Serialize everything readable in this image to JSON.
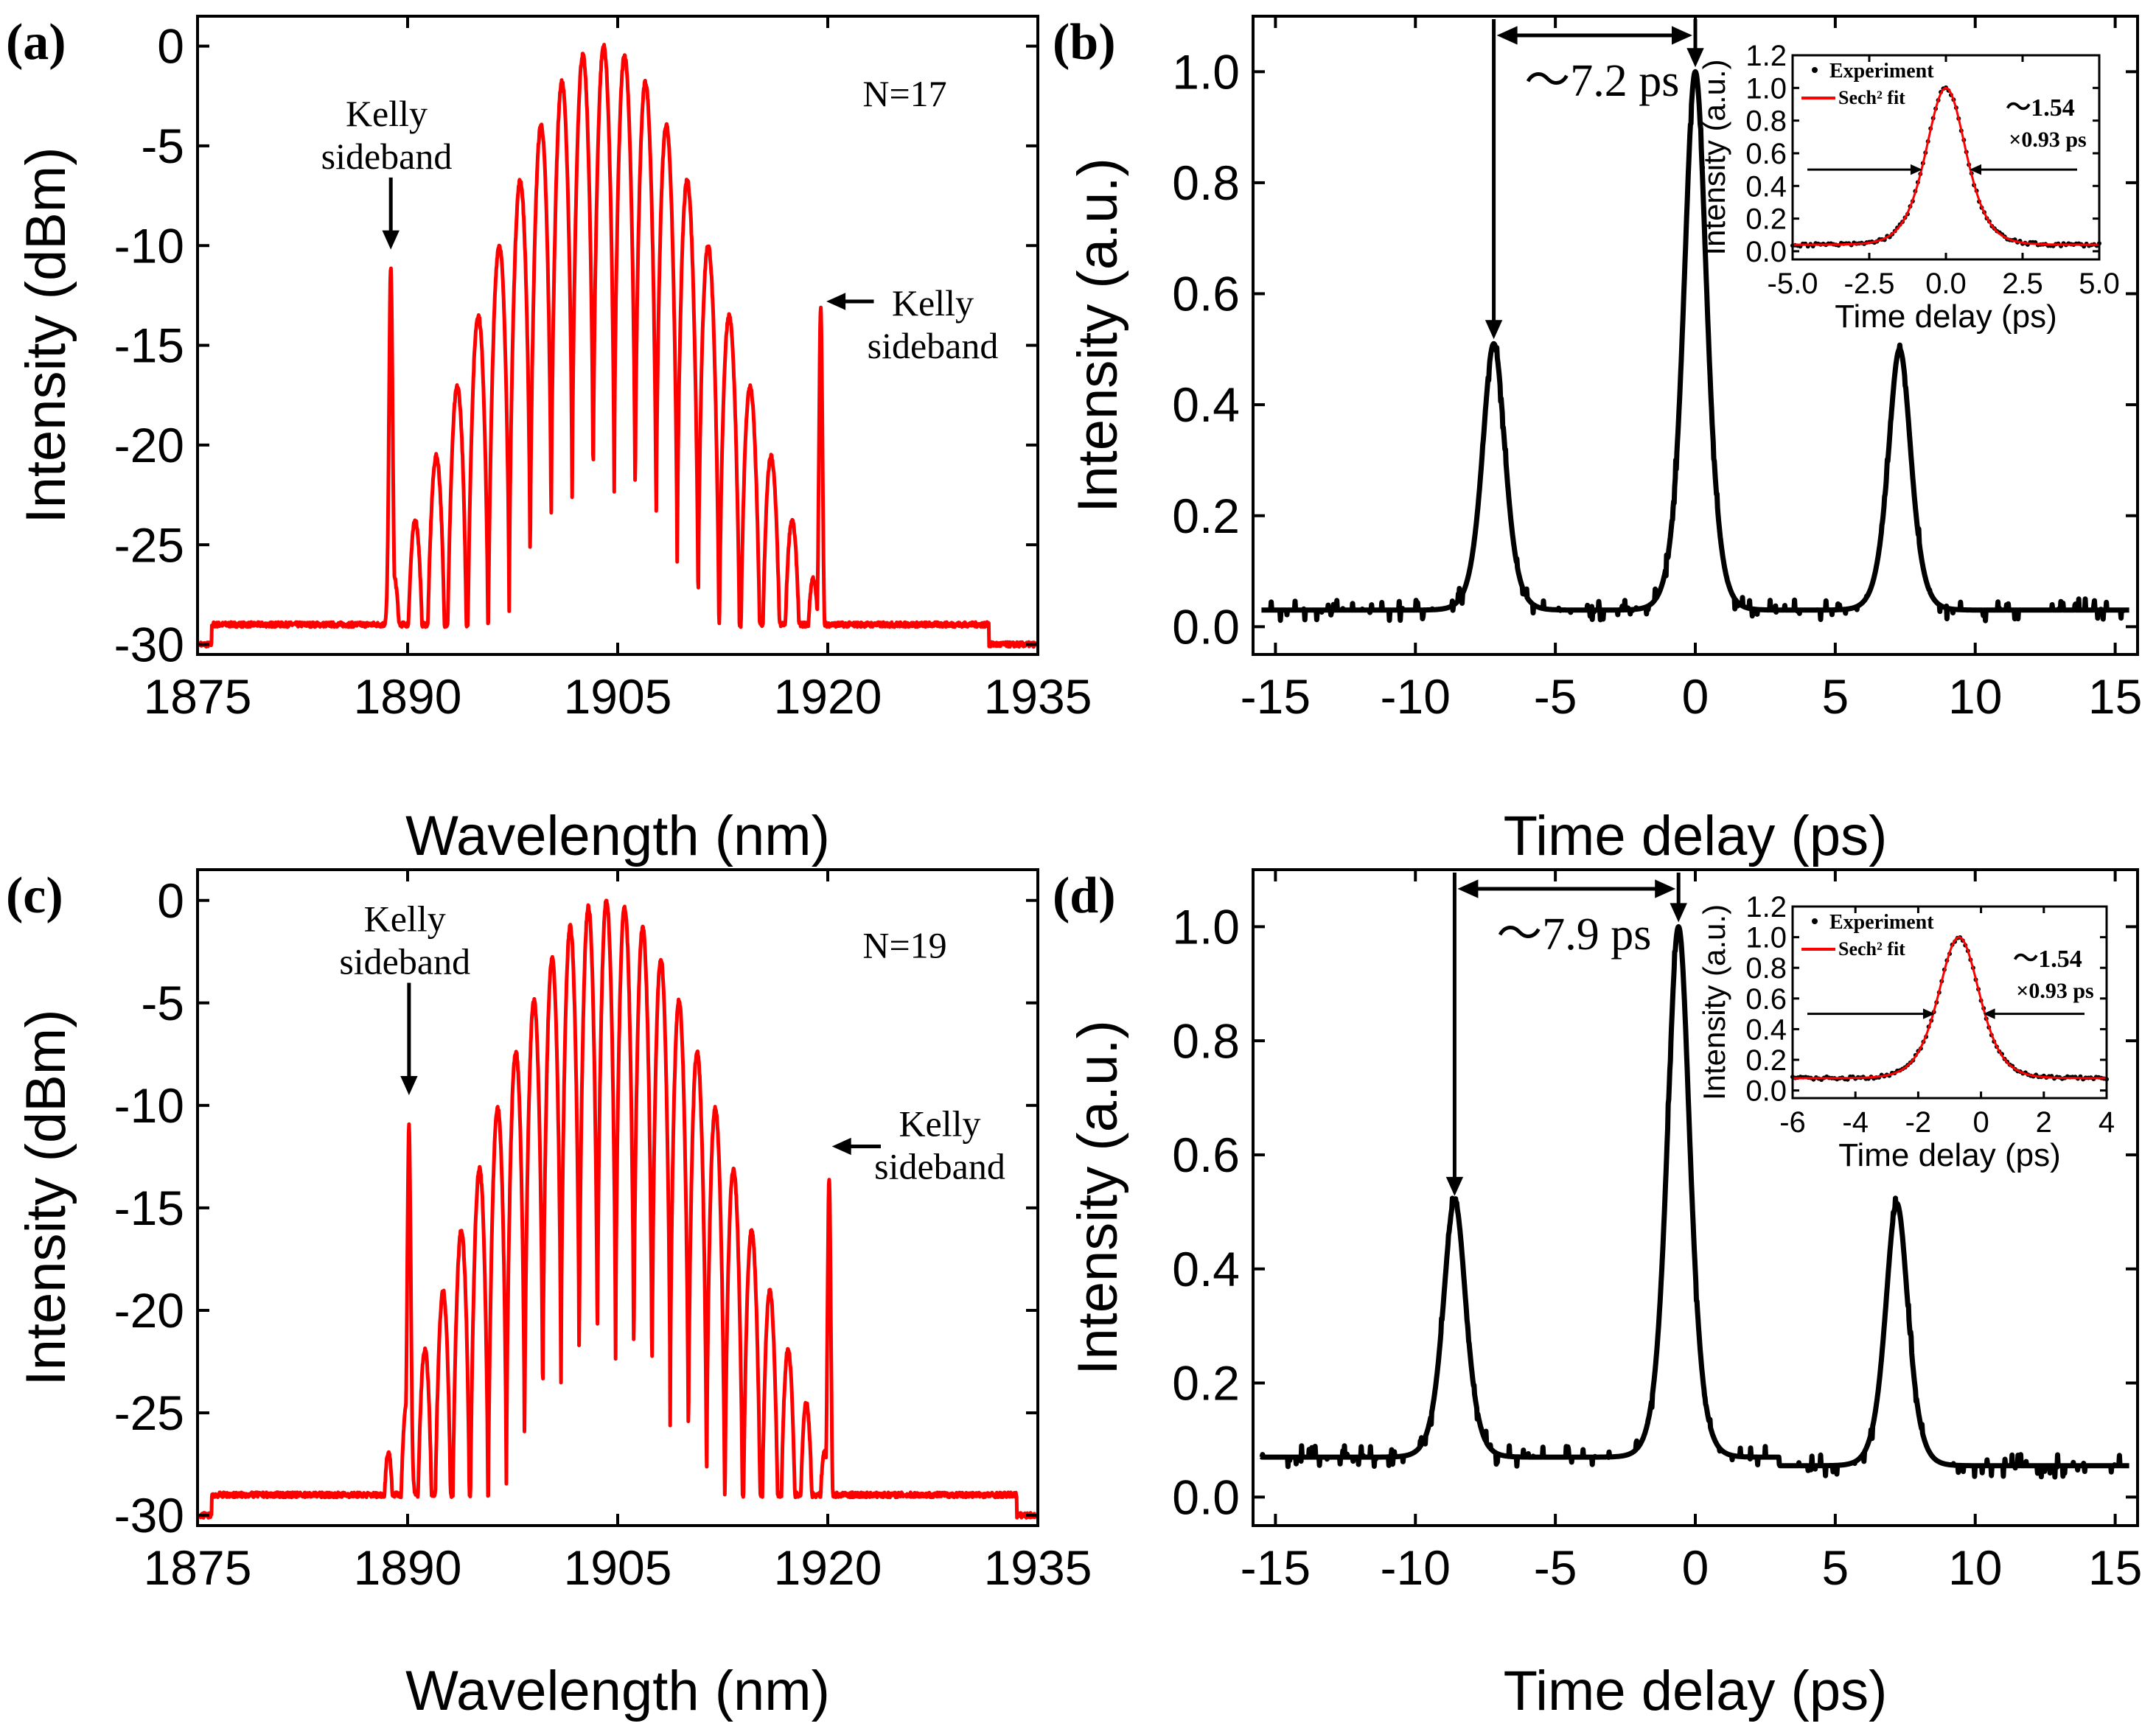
{
  "chart_data": [
    {
      "panel": "(a)",
      "type": "line",
      "title": "",
      "xlabel": "Wavelength (nm)",
      "ylabel": "Intensity (dBm)",
      "xlim": [
        1875,
        1935
      ],
      "ylim": [
        -30.5,
        1.5
      ],
      "xticks": [
        1875,
        1890,
        1905,
        1920,
        1935
      ],
      "xtick_labels": [
        "1875",
        "1890",
        "1905",
        "1920",
        "1935"
      ],
      "yticks": [
        0,
        -5,
        -10,
        -15,
        -20,
        -25,
        -30
      ],
      "ytick_labels": [
        "0",
        "-5",
        "-10",
        "-15",
        "-20",
        "-25",
        "-30"
      ],
      "color": "#ff0000",
      "annotations": [
        {
          "lines": [
            "Kelly",
            "sideband"
          ],
          "x": 1888.5,
          "y": -4.0,
          "arrow_to": [
            1888.8,
            -10.2
          ],
          "arrow": "down"
        },
        {
          "lines": [
            "Kelly",
            "sideband"
          ],
          "x": 1927.5,
          "y": -13.5,
          "arrow_to": [
            1919.9,
            -12.8
          ],
          "arrow": "left"
        },
        {
          "lines": [
            "N=17"
          ],
          "x": 1925.5,
          "y": -3.0
        }
      ],
      "spectrum": {
        "center": 1904,
        "sigma": 9.5,
        "peak": 0,
        "dip_depth": 23,
        "fringe_spacing": 1.5,
        "range": [
          1876,
          1931.5
        ],
        "floor": -30,
        "kelly": [
          {
            "x": 1888.8,
            "y": -11
          },
          {
            "x": 1919.5,
            "y": -13
          }
        ]
      }
    },
    {
      "panel": "(b)",
      "type": "line",
      "title": "",
      "xlabel": "Time delay (ps)",
      "ylabel": "Intensity (a.u.)",
      "xlim": [
        -15.8,
        15.8
      ],
      "ylim": [
        -0.05,
        1.1
      ],
      "xticks": [
        -15,
        -10,
        -5,
        0,
        5,
        10,
        15
      ],
      "xtick_labels": [
        "-15",
        "-10",
        "-5",
        "0",
        "5",
        "10",
        "15"
      ],
      "yticks": [
        0.0,
        0.2,
        0.4,
        0.6,
        0.8,
        1.0
      ],
      "ytick_labels": [
        "0.0",
        "0.2",
        "0.4",
        "0.6",
        "0.8",
        "1.0"
      ],
      "color": "#000000",
      "baseline": 0.03,
      "peaks": [
        {
          "x": -7.2,
          "y": 0.51
        },
        {
          "x": 0,
          "y": 1.0
        },
        {
          "x": 7.3,
          "y": 0.5
        }
      ],
      "peak_width": 0.95,
      "spacing_label": "～7.2 ps",
      "inset": {
        "xlabel": "Time delay (ps)",
        "ylabel": "Intensity (a.u.)",
        "xlim": [
          -5,
          5
        ],
        "ylim": [
          -0.05,
          1.2
        ],
        "xticks": [
          -5,
          -2.5,
          0,
          2.5,
          5
        ],
        "xtick_labels": [
          "-5.0",
          "-2.5",
          "0.0",
          "2.5",
          "5.0"
        ],
        "yticks": [
          0.0,
          0.2,
          0.4,
          0.6,
          0.8,
          1.0,
          1.2
        ],
        "ytick_labels": [
          "0.0",
          "0.2",
          "0.4",
          "0.6",
          "0.8",
          "1.0",
          "1.2"
        ],
        "legend": [
          "Experiment",
          "Sech² fit"
        ],
        "width_label": [
          "～1.54",
          "×0.93 ps"
        ],
        "pulse_center": 0,
        "pulse_fwhm": 1.54,
        "baseline": 0.04
      }
    },
    {
      "panel": "(c)",
      "type": "line",
      "title": "",
      "xlabel": "Wavelength (nm)",
      "ylabel": "Intensity (dBm)",
      "xlim": [
        1875,
        1935
      ],
      "ylim": [
        -30.5,
        1.5
      ],
      "xticks": [
        1875,
        1890,
        1905,
        1920,
        1935
      ],
      "xtick_labels": [
        "1875",
        "1890",
        "1905",
        "1920",
        "1935"
      ],
      "yticks": [
        0,
        -5,
        -10,
        -15,
        -20,
        -25,
        -30
      ],
      "ytick_labels": [
        "0",
        "-5",
        "-10",
        "-15",
        "-20",
        "-25",
        "-30"
      ],
      "color": "#ff0000",
      "annotations": [
        {
          "lines": [
            "Kelly",
            "sideband"
          ],
          "x": 1889.8,
          "y": -1.5,
          "arrow_to": [
            1890.1,
            -9.5
          ],
          "arrow": "down"
        },
        {
          "lines": [
            "Kelly",
            "sideband"
          ],
          "x": 1928.0,
          "y": -11.5,
          "arrow_to": [
            1920.3,
            -12.0
          ],
          "arrow": "left"
        },
        {
          "lines": [
            "N=19"
          ],
          "x": 1925.5,
          "y": -2.8
        }
      ],
      "spectrum": {
        "center": 1904.2,
        "sigma": 9.8,
        "peak": 0,
        "dip_depth": 23,
        "fringe_spacing": 1.3,
        "range": [
          1876,
          1933.5
        ],
        "floor": -30,
        "kelly": [
          {
            "x": 1890.1,
            "y": -11
          },
          {
            "x": 1920.1,
            "y": -13.5
          }
        ]
      }
    },
    {
      "panel": "(d)",
      "type": "line",
      "title": "",
      "xlabel": "Time delay (ps)",
      "ylabel": "Intensity (a.u.)",
      "xlim": [
        -15.8,
        15.8
      ],
      "ylim": [
        -0.05,
        1.1
      ],
      "xticks": [
        -15,
        -10,
        -5,
        0,
        5,
        10,
        15
      ],
      "xtick_labels": [
        "-15",
        "-10",
        "-5",
        "0",
        "5",
        "10",
        "15"
      ],
      "yticks": [
        0.0,
        0.2,
        0.4,
        0.6,
        0.8,
        1.0
      ],
      "ytick_labels": [
        "0.0",
        "0.2",
        "0.4",
        "0.6",
        "0.8",
        "1.0"
      ],
      "color": "#000000",
      "baseline": 0.07,
      "baseline_right": 0.055,
      "peaks": [
        {
          "x": -8.6,
          "y": 0.52
        },
        {
          "x": -0.6,
          "y": 1.0
        },
        {
          "x": 7.2,
          "y": 0.53
        }
      ],
      "peak_width": 0.95,
      "spacing_label": "～7.9 ps",
      "inset": {
        "xlabel": "Time delay (ps)",
        "ylabel": "Intensity (a.u.)",
        "xlim": [
          -6,
          4
        ],
        "ylim": [
          -0.05,
          1.2
        ],
        "xticks": [
          -6,
          -4,
          -2,
          0,
          2,
          4
        ],
        "xtick_labels": [
          "-6",
          "-4",
          "-2",
          "0",
          "2",
          "4"
        ],
        "yticks": [
          0.0,
          0.2,
          0.4,
          0.6,
          0.8,
          1.0,
          1.2
        ],
        "ytick_labels": [
          "0.0",
          "0.2",
          "0.4",
          "0.6",
          "0.8",
          "1.0",
          "1.2"
        ],
        "legend": [
          "Experiment",
          "Sech² fit"
        ],
        "width_label": [
          "～1.54",
          "×0.93 ps"
        ],
        "pulse_center": -0.7,
        "pulse_fwhm": 1.54,
        "baseline": 0.08
      }
    }
  ]
}
